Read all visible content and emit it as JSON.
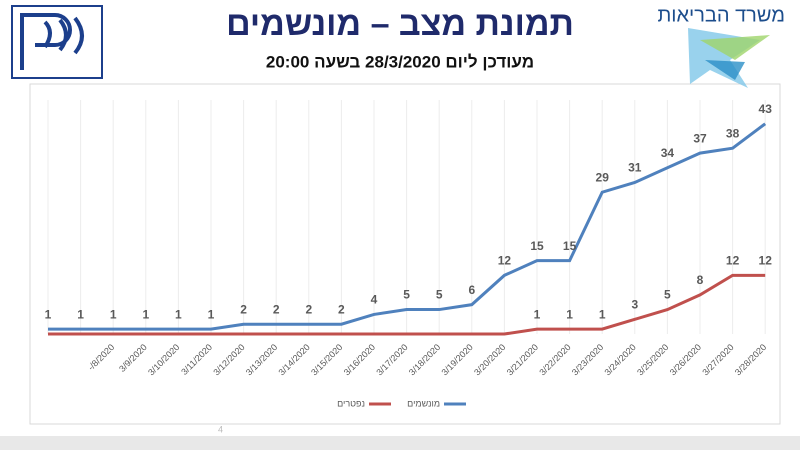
{
  "header": {
    "title": "תמונת מצב – מונשמים",
    "subtitle": "מעודכן ליום 28/3/2020 בשעה 20:00",
    "logo_text": "משרד הבריאות"
  },
  "page_number": "4",
  "chart_data": {
    "type": "line",
    "categories": [
      null,
      null,
      "-/8/2020",
      "3/9/2020",
      "3/10/2020",
      "3/11/2020",
      "3/12/2020",
      "3/13/2020",
      "3/14/2020",
      "3/15/2020",
      "3/16/2020",
      "3/17/2020",
      "3/18/2020",
      "3/19/2020",
      "3/20/2020",
      "3/21/2020",
      "3/22/2020",
      "3/23/2020",
      "3/24/2020",
      "3/25/2020",
      "3/26/2020",
      "3/27/2020",
      "3/28/2020"
    ],
    "series": [
      {
        "name": "מונשמים",
        "color": "#4f81bd",
        "values": [
          1,
          1,
          1,
          1,
          1,
          1,
          2,
          2,
          2,
          2,
          4,
          5,
          5,
          6,
          12,
          15,
          15,
          29,
          31,
          34,
          37,
          38,
          43
        ]
      },
      {
        "name": "נפטרים",
        "color": "#c0504d",
        "values": [
          0,
          0,
          0,
          0,
          0,
          0,
          0,
          0,
          0,
          0,
          0,
          0,
          0,
          0,
          0,
          1,
          1,
          1,
          3,
          5,
          8,
          12,
          12
        ],
        "value_labels": [
          null,
          null,
          null,
          null,
          null,
          null,
          null,
          null,
          null,
          null,
          null,
          null,
          null,
          null,
          null,
          "1",
          "1",
          "1",
          "3",
          "5",
          "8",
          "12",
          "12"
        ]
      }
    ],
    "ylim": [
      0,
      45
    ],
    "grid": true,
    "legend": "bottom"
  }
}
